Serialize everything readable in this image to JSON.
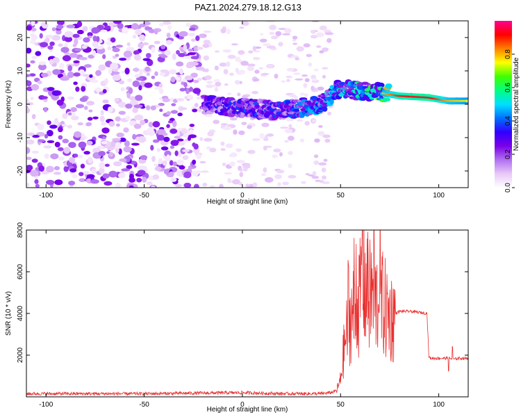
{
  "chart_data": [
    {
      "type": "heatmap",
      "title": "PAZ1.2024.279.18.12.G13",
      "xlabel": "Height of straight line (km)",
      "ylabel": "Frequency (Hz)",
      "xlim": [
        -110,
        115
      ],
      "ylim": [
        -25,
        25
      ],
      "x_ticks": [
        -100,
        -50,
        0,
        50,
        100
      ],
      "x_tick_labels": [
        "-100",
        "-50",
        "0",
        "50",
        "100"
      ],
      "y_ticks": [
        -20,
        -10,
        0,
        10,
        20
      ],
      "y_tick_labels": [
        "-20",
        "-10",
        "0",
        "10",
        "20"
      ],
      "colorbar": {
        "label": "Normalized spectral amplitude",
        "range": [
          0,
          1
        ],
        "ticks": [
          0.0,
          0.2,
          0.4,
          0.6,
          0.8
        ],
        "tick_labels": [
          "0.0",
          "0.2",
          "0.4",
          "0.6",
          "0.8"
        ],
        "colormap": [
          "#ffffff",
          "#e8c8f8",
          "#b070f0",
          "#7a00e8",
          "#3000ff",
          "#0070ff",
          "#00e0ff",
          "#00ff80",
          "#40ff00",
          "#ffff00",
          "#ff8000",
          "#ff0000",
          "#ff0090"
        ]
      },
      "features": {
        "noise_region_x": [
          -110,
          -22
        ],
        "noise_amplitude": 0.25,
        "sparse_region_x": [
          -22,
          45
        ],
        "signal_track": [
          {
            "x": -20,
            "y": 0,
            "a": 0.35
          },
          {
            "x": 0,
            "y": -1,
            "a": 0.4
          },
          {
            "x": 20,
            "y": -2,
            "a": 0.4
          },
          {
            "x": 40,
            "y": 0,
            "a": 0.5
          },
          {
            "x": 50,
            "y": 5,
            "a": 0.55
          },
          {
            "x": 60,
            "y": 4,
            "a": 0.6
          },
          {
            "x": 70,
            "y": 3.5,
            "a": 0.75
          },
          {
            "x": 80,
            "y": 2.5,
            "a": 0.9
          },
          {
            "x": 95,
            "y": 2,
            "a": 0.95
          },
          {
            "x": 105,
            "y": 1,
            "a": 0.8
          },
          {
            "x": 115,
            "y": 1,
            "a": 0.75
          }
        ]
      }
    },
    {
      "type": "line",
      "xlabel": "Height of straight line (km)",
      "ylabel": "SNR (10 * v/v)",
      "xlim": [
        -110,
        115
      ],
      "ylim": [
        0,
        8000
      ],
      "x_ticks": [
        -100,
        -50,
        0,
        50,
        100
      ],
      "x_tick_labels": [
        "-100",
        "-50",
        "0",
        "50",
        "100"
      ],
      "y_ticks": [
        2000,
        4000,
        6000,
        8000
      ],
      "y_tick_labels": [
        "2000",
        "4000",
        "6000",
        "8000"
      ],
      "color": "#e83030",
      "series": [
        {
          "x": [
            -110,
            -80,
            -50,
            -20,
            0,
            20,
            40,
            45,
            48,
            50,
            52,
            54,
            56,
            58,
            60,
            62,
            64,
            66,
            68,
            70,
            72,
            74,
            76,
            78,
            80,
            85,
            90,
            94,
            95,
            96,
            100,
            105,
            108,
            110,
            115
          ],
          "values": [
            150,
            150,
            150,
            180,
            200,
            150,
            150,
            200,
            300,
            800,
            2500,
            3500,
            4000,
            4200,
            4800,
            5500,
            4600,
            5000,
            4500,
            4800,
            4300,
            4000,
            3800,
            4000,
            4100,
            4100,
            4050,
            4000,
            1900,
            1850,
            1850,
            1850,
            1800,
            1850,
            1850
          ],
          "spikes": [
            [
              58,
              6200
            ],
            [
              61,
              8000
            ],
            [
              64,
              7600
            ],
            [
              67,
              7400
            ],
            [
              70,
              6800
            ],
            [
              57,
              5600
            ],
            [
              54,
              4800
            ],
            [
              107,
              2400
            ],
            [
              105,
              1300
            ]
          ]
        }
      ]
    }
  ]
}
